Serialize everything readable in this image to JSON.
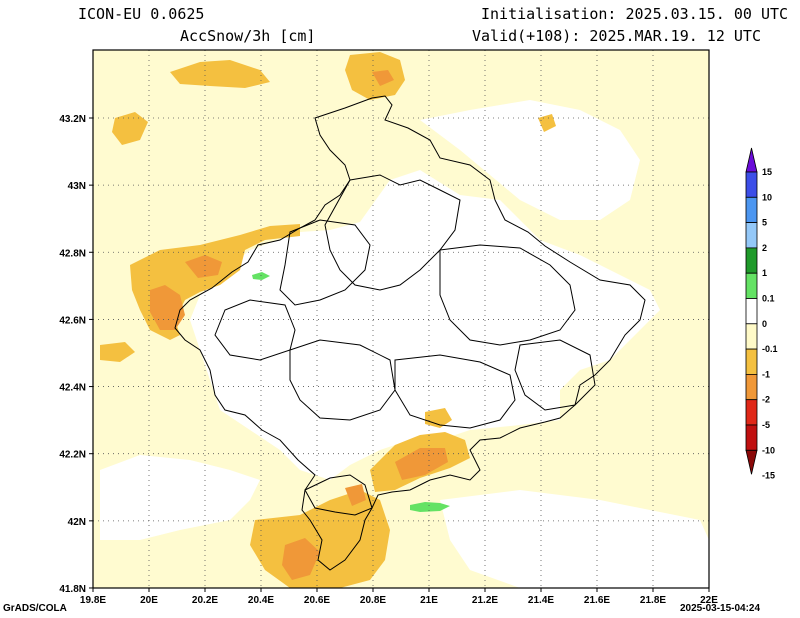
{
  "header": {
    "model": "ICON-EU 0.0625",
    "field": "AccSnow/3h [cm]",
    "init": "Initialisation: 2025.03.15. 00 UTC",
    "valid": "Valid(+108): 2025.MAR.19. 12 UTC"
  },
  "footer": {
    "credit": "GrADS/COLA",
    "timestamp": "2025-03-15-04:24"
  },
  "axes": {
    "lon_labels": [
      "19.8E",
      "20E",
      "20.2E",
      "20.4E",
      "20.6E",
      "20.8E",
      "21E",
      "21.2E",
      "21.4E",
      "21.6E",
      "21.8E",
      "22E"
    ],
    "lat_labels": [
      "43.2N",
      "43N",
      "42.8N",
      "42.6N",
      "42.4N",
      "42.2N",
      "42N",
      "41.8N"
    ]
  },
  "colorbar": {
    "labels": [
      "15",
      "10",
      "5",
      "2",
      "1",
      "0.1",
      "0",
      "-0.1",
      "-1",
      "-2",
      "-5",
      "-10",
      "-15"
    ],
    "colors": [
      "#6a0cd8",
      "#3c4ee8",
      "#4c96f0",
      "#94c8f8",
      "#1f9a2a",
      "#64e264",
      "#ffffff",
      "#fffac8",
      "#f4c040",
      "#f09838",
      "#e02818",
      "#c01010",
      "#8a0808"
    ]
  },
  "map": {
    "background_color": "#fffbd0",
    "grid": "dotted",
    "fill_colors": {
      "light": "#fffac8",
      "yellow": "#f4c040",
      "orange": "#f09838",
      "green": "#64e264",
      "white": "#ffffff"
    }
  }
}
